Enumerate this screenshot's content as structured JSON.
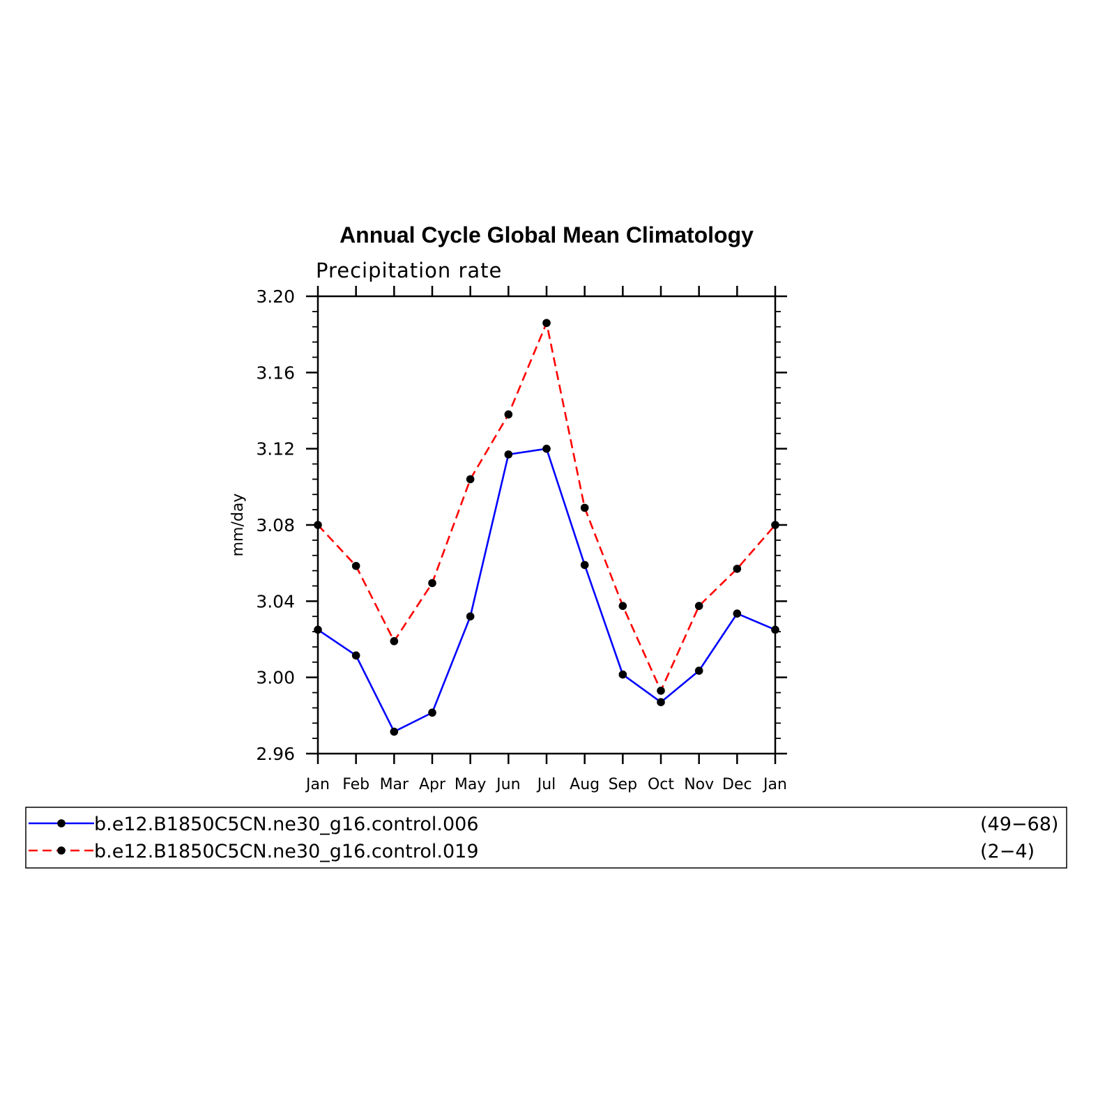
{
  "chart_data": {
    "type": "line",
    "title": "Annual Cycle Global Mean Climatology",
    "subtitle": "Precipitation rate",
    "ylabel": "mm/day",
    "xlabel": "",
    "categories": [
      "Jan",
      "Feb",
      "Mar",
      "Apr",
      "May",
      "Jun",
      "Jul",
      "Aug",
      "Sep",
      "Oct",
      "Nov",
      "Dec",
      "Jan"
    ],
    "ylim": [
      2.96,
      3.2
    ],
    "yticks": [
      "3.20",
      "3.16",
      "3.12",
      "3.08",
      "3.04",
      "3.00",
      "2.96"
    ],
    "grid": false,
    "legend_placement": "bottom",
    "series": [
      {
        "name": "b.e12.B1850C5CN.ne30_g16.control.006",
        "years": "(49−68)",
        "color": "#0000ff",
        "dash": "solid",
        "values": [
          3.025,
          3.0115,
          2.9715,
          2.9815,
          3.032,
          3.117,
          3.12,
          3.059,
          3.0015,
          2.987,
          3.0035,
          3.0335,
          3.025
        ]
      },
      {
        "name": "b.e12.B1850C5CN.ne30_g16.control.019",
        "years": "(2−4)",
        "color": "#ff0000",
        "dash": "dashed",
        "values": [
          3.08,
          3.0585,
          3.019,
          3.0495,
          3.104,
          3.138,
          3.186,
          3.089,
          3.0375,
          2.993,
          3.0375,
          3.057,
          3.08
        ]
      }
    ]
  }
}
